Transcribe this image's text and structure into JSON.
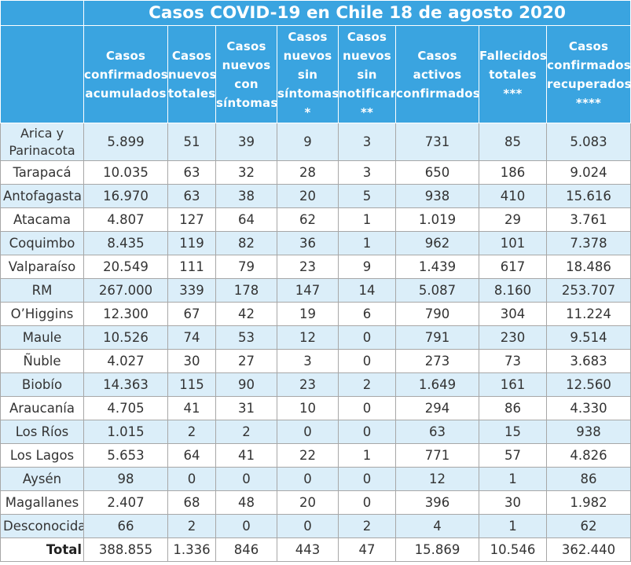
{
  "title": "Casos COVID-19 en Chile 18 de agosto 2020",
  "headers": [
    "Casos\nconfirmados\nacumulados",
    "Casos\nnuevos\ntotales",
    "Casos\nnuevos\ncon\nsíntomas",
    "Casos\nnuevos\nsin\nsíntomas\n*",
    "Casos\nnuevos\nsin\nnotificar\n**",
    "Casos\nactivos\nconfirmados",
    "Fallecidos\ntotales\n***",
    "Casos\nconfirmados\nrecuperados\n****"
  ],
  "rows": [
    {
      "region": "Arica y\nParinacota",
      "values": [
        "5.899",
        "51",
        "39",
        "9",
        "3",
        "731",
        "85",
        "5.083"
      ]
    },
    {
      "region": "Tarapacá",
      "values": [
        "10.035",
        "63",
        "32",
        "28",
        "3",
        "650",
        "186",
        "9.024"
      ]
    },
    {
      "region": "Antofagasta",
      "values": [
        "16.970",
        "63",
        "38",
        "20",
        "5",
        "938",
        "410",
        "15.616"
      ]
    },
    {
      "region": "Atacama",
      "values": [
        "4.807",
        "127",
        "64",
        "62",
        "1",
        "1.019",
        "29",
        "3.761"
      ]
    },
    {
      "region": "Coquimbo",
      "values": [
        "8.435",
        "119",
        "82",
        "36",
        "1",
        "962",
        "101",
        "7.378"
      ]
    },
    {
      "region": "Valparaíso",
      "values": [
        "20.549",
        "111",
        "79",
        "23",
        "9",
        "1.439",
        "617",
        "18.486"
      ]
    },
    {
      "region": "RM",
      "values": [
        "267.000",
        "339",
        "178",
        "147",
        "14",
        "5.087",
        "8.160",
        "253.707"
      ]
    },
    {
      "region": "O’Higgins",
      "values": [
        "12.300",
        "67",
        "42",
        "19",
        "6",
        "790",
        "304",
        "11.224"
      ]
    },
    {
      "region": "Maule",
      "values": [
        "10.526",
        "74",
        "53",
        "12",
        "0",
        "791",
        "230",
        "9.514"
      ]
    },
    {
      "region": "Ñuble",
      "values": [
        "4.027",
        "30",
        "27",
        "3",
        "0",
        "273",
        "73",
        "3.683"
      ]
    },
    {
      "region": "Biobío",
      "values": [
        "14.363",
        "115",
        "90",
        "23",
        "2",
        "1.649",
        "161",
        "12.560"
      ]
    },
    {
      "region": "Araucanía",
      "values": [
        "4.705",
        "41",
        "31",
        "10",
        "0",
        "294",
        "86",
        "4.330"
      ]
    },
    {
      "region": "Los Ríos",
      "values": [
        "1.015",
        "2",
        "2",
        "0",
        "0",
        "63",
        "15",
        "938"
      ]
    },
    {
      "region": "Los Lagos",
      "values": [
        "5.653",
        "64",
        "41",
        "22",
        "1",
        "771",
        "57",
        "4.826"
      ]
    },
    {
      "region": "Aysén",
      "values": [
        "98",
        "0",
        "0",
        "0",
        "0",
        "12",
        "1",
        "86"
      ]
    },
    {
      "region": "Magallanes",
      "values": [
        "2.407",
        "68",
        "48",
        "20",
        "0",
        "396",
        "30",
        "1.982"
      ]
    },
    {
      "region": "Desconocida",
      "values": [
        "66",
        "2",
        "0",
        "0",
        "2",
        "4",
        "1",
        "62"
      ]
    }
  ],
  "total": {
    "label": "Total",
    "values": [
      "388.855",
      "1.336",
      "846",
      "443",
      "47",
      "15.869",
      "10.546",
      "362.440"
    ]
  },
  "colors": {
    "header_bg": "#3aa4e0",
    "stripe_bg": "#dbeef9",
    "border": "#a7a7a7"
  }
}
